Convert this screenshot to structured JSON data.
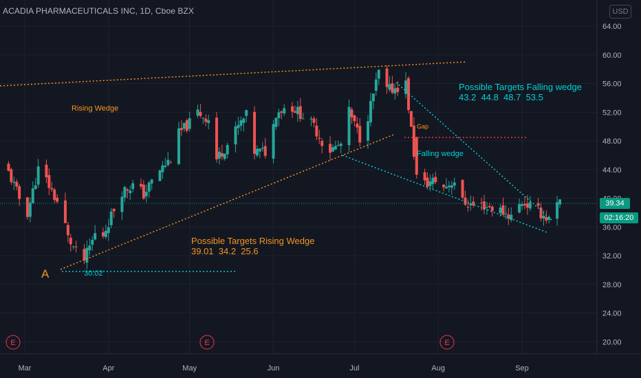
{
  "header": {
    "symbol_title": "ACADIA PHARMACEUTICALS INC, 1D, Cboe BZX",
    "currency": "USD"
  },
  "price_axis": {
    "labels": [
      "64.00",
      "60.00",
      "56.00",
      "52.00",
      "48.00",
      "44.00",
      "40.00",
      "36.00",
      "32.00",
      "28.00",
      "24.00",
      "20.00"
    ],
    "last_price": "39.34",
    "countdown": "02:16:20"
  },
  "time_axis": {
    "labels": [
      "Mar",
      "Apr",
      "May",
      "Jun",
      "Jul",
      "Aug",
      "Sep"
    ]
  },
  "events": [
    "E",
    "E",
    "E"
  ],
  "annotations": {
    "rising_wedge_label": "Rising Wedge",
    "falling_wedge_label": "Falling wedge",
    "gap_label": "Gap",
    "point_a_label": "A",
    "low_price_label": "30.02",
    "rising_targets_title": "Possible Targets Rising Wedge",
    "rising_targets_values": "39.01  34.2  25.6",
    "falling_targets_title": "Possible Targets Falling wedge",
    "falling_targets_values": "43.2  44.8  48.7  53.5"
  },
  "colors": {
    "background": "#131722",
    "up_candle": "#26a69a",
    "down_candle": "#ef5350",
    "orange_annotation": "#f7941d",
    "cyan_annotation": "#00d2d3",
    "gap_line": "#f23645",
    "last_price": "#089981"
  },
  "chart_data": {
    "type": "candlestick",
    "ylim": [
      18,
      66
    ],
    "last_price": 39.34,
    "x_ticks": [
      "Mar",
      "Apr",
      "May",
      "Jun",
      "Jul",
      "Aug",
      "Sep"
    ],
    "close_path": [
      {
        "x": "Feb 22",
        "y": 44.5
      },
      {
        "x": "Feb 27",
        "y": 40.0
      },
      {
        "x": "Mar 2",
        "y": 38.0
      },
      {
        "x": "Mar 6",
        "y": 44.0
      },
      {
        "x": "Mar 9",
        "y": 42.5
      },
      {
        "x": "Mar 13",
        "y": 39.5
      },
      {
        "x": "Mar 15",
        "y": 38.0
      },
      {
        "x": "Mar 17",
        "y": 34.5
      },
      {
        "x": "Mar 20",
        "y": 32.5
      },
      {
        "x": "Mar 22",
        "y": 30.5
      },
      {
        "x": "Mar 27",
        "y": 35.0
      },
      {
        "x": "Mar 29",
        "y": 34.0
      },
      {
        "x": "Apr 3",
        "y": 38.5
      },
      {
        "x": "Apr 6",
        "y": 41.0
      },
      {
        "x": "Apr 11",
        "y": 42.0
      },
      {
        "x": "Apr 14",
        "y": 40.5
      },
      {
        "x": "Apr 19",
        "y": 43.5
      },
      {
        "x": "Apr 24",
        "y": 45.5
      },
      {
        "x": "Apr 27",
        "y": 49.0
      },
      {
        "x": "May 1",
        "y": 50.5
      },
      {
        "x": "May 4",
        "y": 52.0
      },
      {
        "x": "May 8",
        "y": 51.0
      },
      {
        "x": "May 10",
        "y": 45.0
      },
      {
        "x": "May 15",
        "y": 47.5
      },
      {
        "x": "May 19",
        "y": 50.0
      },
      {
        "x": "May 22",
        "y": 51.5
      },
      {
        "x": "May 25",
        "y": 46.5
      },
      {
        "x": "May 30",
        "y": 46.5
      },
      {
        "x": "Jun 2",
        "y": 52.0
      },
      {
        "x": "Jun 7",
        "y": 53.0
      },
      {
        "x": "Jun 12",
        "y": 51.5
      },
      {
        "x": "Jun 16",
        "y": 50.0
      },
      {
        "x": "Jun 21",
        "y": 46.5
      },
      {
        "x": "Jun 26",
        "y": 47.5
      },
      {
        "x": "Jun 29",
        "y": 52.0
      },
      {
        "x": "Jul 3",
        "y": 48.5
      },
      {
        "x": "Jul 6",
        "y": 51.5
      },
      {
        "x": "Jul 10",
        "y": 57.5
      },
      {
        "x": "Jul 13",
        "y": 55.0
      },
      {
        "x": "Jul 17",
        "y": 55.5
      },
      {
        "x": "Jul 20",
        "y": 56.0
      },
      {
        "x": "Jul 24",
        "y": 43.0
      },
      {
        "x": "Jul 27",
        "y": 42.0
      },
      {
        "x": "Jul 31",
        "y": 42.5
      },
      {
        "x": "Aug 3",
        "y": 41.5
      },
      {
        "x": "Aug 7",
        "y": 42.5
      },
      {
        "x": "Aug 10",
        "y": 39.5
      },
      {
        "x": "Aug 14",
        "y": 39.0
      },
      {
        "x": "Aug 18",
        "y": 39.0
      },
      {
        "x": "Aug 23",
        "y": 38.5
      },
      {
        "x": "Aug 28",
        "y": 37.5
      },
      {
        "x": "Sep 1",
        "y": 39.5
      },
      {
        "x": "Sep 6",
        "y": 38.5
      },
      {
        "x": "Sep 11",
        "y": 37.0
      },
      {
        "x": "Sep 13",
        "y": 38.5
      },
      {
        "x": "Sep 15",
        "y": 39.34
      }
    ]
  }
}
